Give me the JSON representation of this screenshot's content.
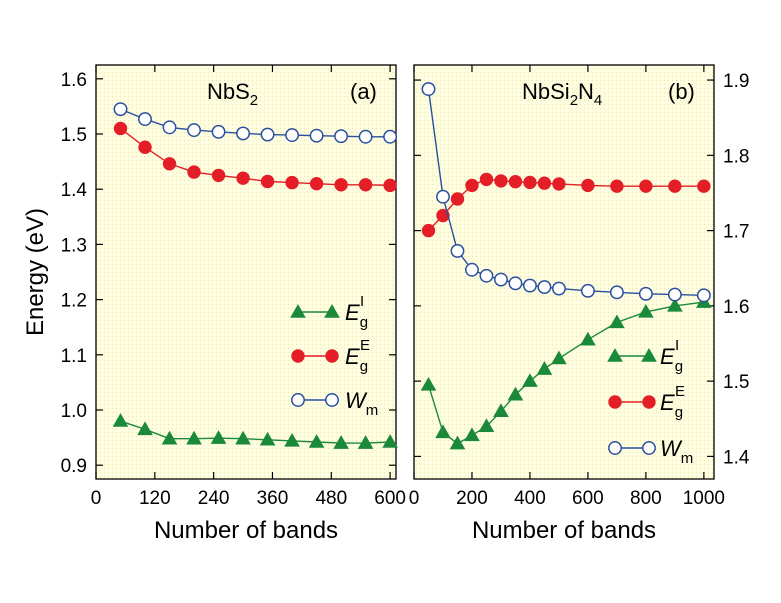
{
  "chart_data": {
    "type": "line",
    "ylabel": "Energy (eV)",
    "colors": {
      "EgI": "#1a8a3a",
      "EgE": "#e41e26",
      "Wm": "#2a4f9e",
      "bg": "#fffde0",
      "grid": "#e5e3a5"
    },
    "panels": [
      {
        "id": "a",
        "title": "NbS",
        "title_sub": "2",
        "label": "(a)",
        "xlabel": "Number of bands",
        "xlim": [
          0,
          612
        ],
        "ylim": [
          0.875,
          1.625
        ],
        "xticks": [
          0,
          120,
          240,
          360,
          480,
          600
        ],
        "xtick_labels": [
          "0",
          "120",
          "240",
          "360",
          "480",
          "600"
        ],
        "yticks": [
          0.9,
          1.0,
          1.1,
          1.2,
          1.3,
          1.4,
          1.5,
          1.6
        ],
        "ytick_labels": [
          "0.9",
          "1.0",
          "1.1",
          "1.2",
          "1.3",
          "1.4",
          "1.5",
          "1.6"
        ],
        "legend_position": "center-right",
        "series": [
          {
            "key": "EgI",
            "name": "E",
            "sub": "g",
            "sup": "I",
            "marker": "triangle",
            "x": [
              50,
              100,
              150,
              200,
              250,
              300,
              350,
              400,
              450,
              500,
              550,
              600
            ],
            "y": [
              0.98,
              0.965,
              0.948,
              0.948,
              0.949,
              0.948,
              0.946,
              0.944,
              0.942,
              0.94,
              0.94,
              0.942
            ]
          },
          {
            "key": "EgE",
            "name": "E",
            "sub": "g",
            "sup": "E",
            "marker": "circle-filled",
            "x": [
              50,
              100,
              150,
              200,
              250,
              300,
              350,
              400,
              450,
              500,
              550,
              600
            ],
            "y": [
              1.51,
              1.476,
              1.446,
              1.431,
              1.425,
              1.42,
              1.414,
              1.412,
              1.41,
              1.408,
              1.408,
              1.407
            ]
          },
          {
            "key": "Wm",
            "name": "W",
            "sub": "m",
            "sup": "",
            "marker": "circle-open",
            "x": [
              50,
              100,
              150,
              200,
              250,
              300,
              350,
              400,
              450,
              500,
              550,
              600
            ],
            "y": [
              1.545,
              1.527,
              1.512,
              1.507,
              1.504,
              1.501,
              1.499,
              1.498,
              1.497,
              1.496,
              1.495,
              1.495
            ]
          }
        ]
      },
      {
        "id": "b",
        "title": "NbSi",
        "title_sub": "2",
        "title_mid": "N",
        "title_sub2": "4",
        "label": "(b)",
        "xlabel": "Number of bands",
        "xlim": [
          0,
          1035
        ],
        "ylim": [
          1.37,
          1.92
        ],
        "xticks": [
          0,
          200,
          400,
          600,
          800,
          1000
        ],
        "xtick_labels": [
          "0",
          "200",
          "400",
          "600",
          "800",
          "1000"
        ],
        "yticks": [
          1.4,
          1.5,
          1.6,
          1.7,
          1.8,
          1.9
        ],
        "ytick_labels": [
          "1.4",
          "1.5",
          "1.6",
          "1.7",
          "1.8",
          "1.9"
        ],
        "legend_position": "lower-right",
        "series": [
          {
            "key": "EgI",
            "name": "E",
            "sub": "g",
            "sup": "I",
            "marker": "triangle",
            "x": [
              50,
              100,
              150,
              200,
              250,
              300,
              350,
              400,
              450,
              500,
              600,
              700,
              800,
              900,
              1000
            ],
            "y": [
              1.495,
              1.432,
              1.417,
              1.428,
              1.44,
              1.46,
              1.482,
              1.5,
              1.516,
              1.53,
              1.555,
              1.578,
              1.592,
              1.6,
              1.605
            ]
          },
          {
            "key": "EgE",
            "name": "E",
            "sub": "g",
            "sup": "E",
            "marker": "circle-filled",
            "x": [
              50,
              100,
              150,
              200,
              250,
              300,
              350,
              400,
              450,
              500,
              600,
              700,
              800,
              900,
              1000
            ],
            "y": [
              1.7,
              1.72,
              1.742,
              1.76,
              1.768,
              1.766,
              1.765,
              1.764,
              1.763,
              1.762,
              1.76,
              1.759,
              1.759,
              1.759,
              1.759
            ]
          },
          {
            "key": "Wm",
            "name": "W",
            "sub": "m",
            "sup": "",
            "marker": "circle-open",
            "x": [
              50,
              100,
              150,
              200,
              250,
              300,
              350,
              400,
              450,
              500,
              600,
              700,
              800,
              900,
              1000
            ],
            "y": [
              1.888,
              1.745,
              1.673,
              1.648,
              1.64,
              1.635,
              1.63,
              1.627,
              1.625,
              1.623,
              1.62,
              1.618,
              1.616,
              1.615,
              1.614
            ]
          }
        ]
      }
    ]
  }
}
